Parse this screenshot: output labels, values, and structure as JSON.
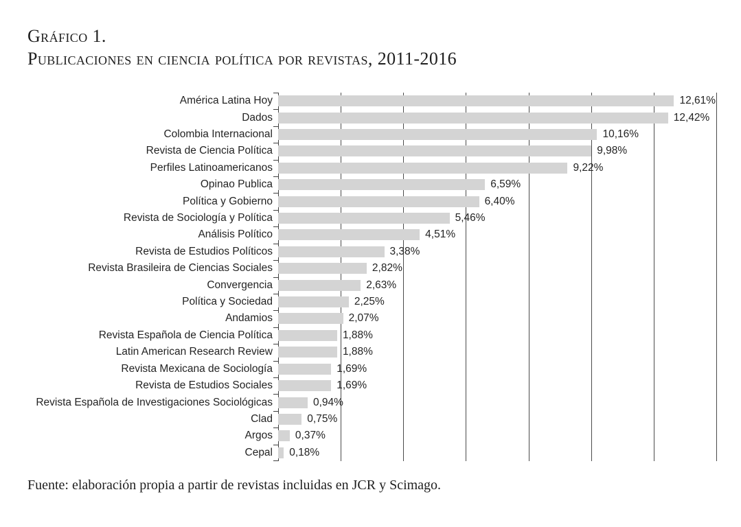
{
  "page": {
    "title_line1": "Gráfico 1.",
    "title_line2": "Publicaciones en ciencia política por revistas, 2011-2016",
    "source_note": "Fuente: elaboración propia a partir de revistas incluidas en JCR y Scimago."
  },
  "colors": {
    "bar_fill": "#d4d4d4",
    "grid_color": "#4a4a4a",
    "axis_color": "#3f3f3f",
    "text_color": "#232323"
  },
  "chart_data": {
    "type": "bar",
    "orientation": "horizontal",
    "title": "Publicaciones en ciencia política por revistas, 2011-2016",
    "xlabel": "",
    "ylabel": "",
    "xlim": [
      0,
      14
    ],
    "gridline_step_pct": 2,
    "grid": true,
    "legend": false,
    "value_unit": "%",
    "categories": [
      "América Latina Hoy",
      "Dados",
      "Colombia Internacional",
      "Revista de Ciencia Política",
      "Perfiles Latinoamericanos",
      "Opinao Publica",
      "Política y Gobierno",
      "Revista de Sociología y Política",
      "Análisis Político",
      "Revista de Estudios Políticos",
      "Revista Brasileira de Ciencias Sociales",
      "Convergencia",
      "Política y Sociedad",
      "Andamios",
      "Revista Española de Ciencia Política",
      "Latin American Research Review",
      "Revista Mexicana de Sociología",
      "Revista de Estudios Sociales",
      "Revista Española de Investigaciones Sociológicas",
      "Clad",
      "Argos",
      "Cepal"
    ],
    "values": [
      12.61,
      12.42,
      10.16,
      9.98,
      9.22,
      6.59,
      6.4,
      5.46,
      4.51,
      3.38,
      2.82,
      2.63,
      2.25,
      2.07,
      1.88,
      1.88,
      1.69,
      1.69,
      0.94,
      0.75,
      0.37,
      0.18
    ],
    "value_labels": [
      "12,61%",
      "12,42%",
      "10,16%",
      "9,98%",
      "9,22%",
      "6,59%",
      "6,40%",
      "5,46%",
      "4,51%",
      "3,38%",
      "2,82%",
      "2,63%",
      "2,25%",
      "2,07%",
      "1,88%",
      "1,88%",
      "1,69%",
      "1,69%",
      "0,94%",
      "0,75%",
      "0,37%",
      "0,18%"
    ]
  }
}
